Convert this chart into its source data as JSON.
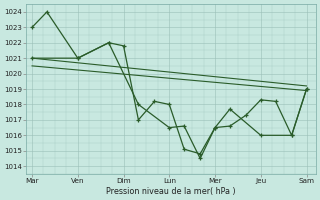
{
  "bg_color": "#c8e8e0",
  "grid_color": "#9bbfb8",
  "line_color": "#2a5c2a",
  "title": "Pression niveau de la mer( hPa )",
  "ylim": [
    1013.5,
    1024.5
  ],
  "yticks": [
    1014,
    1015,
    1016,
    1017,
    1018,
    1019,
    1020,
    1021,
    1022,
    1023,
    1024
  ],
  "xtick_labels": [
    "Mar",
    "Ven",
    "Dim",
    "Lun",
    "Mer",
    "Jeu",
    "Sam"
  ],
  "xtick_positions": [
    0,
    40,
    80,
    120,
    160,
    200,
    240
  ],
  "xlim": [
    -5,
    248
  ],
  "line1_x": [
    0,
    13,
    40,
    67,
    80,
    93,
    107,
    120,
    133,
    147,
    160,
    173,
    187,
    200,
    213,
    227,
    240
  ],
  "line1_y": [
    1023,
    1024,
    1021,
    1022,
    1021.8,
    1017,
    1018.2,
    1018,
    1015.1,
    1014.8,
    1016.5,
    1016.6,
    1017.3,
    1018.3,
    1018.2,
    1016.0,
    1019.0
  ],
  "line2_x": [
    0,
    40,
    67,
    93,
    120,
    133,
    147,
    160,
    173,
    200,
    227,
    240
  ],
  "line2_y": [
    1021,
    1021,
    1022,
    1018,
    1016.5,
    1016.6,
    1014.5,
    1016.5,
    1017.7,
    1016.0,
    1016.0,
    1019.0
  ],
  "line3_x": [
    0,
    240
  ],
  "line3_y": [
    1021.0,
    1019.2
  ],
  "line4_x": [
    0,
    240
  ],
  "line4_y": [
    1020.5,
    1018.9
  ]
}
